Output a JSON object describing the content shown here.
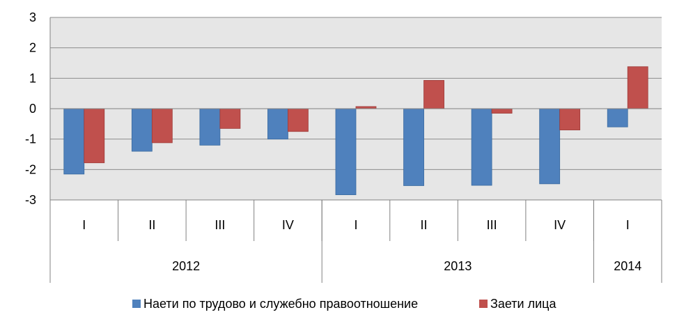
{
  "chart_data": {
    "type": "bar",
    "categories": [
      "I",
      "II",
      "III",
      "IV",
      "I",
      "II",
      "III",
      "IV",
      "I"
    ],
    "groups": [
      {
        "label": "2012",
        "count": 4
      },
      {
        "label": "2013",
        "count": 4
      },
      {
        "label": "2014",
        "count": 1
      }
    ],
    "series": [
      {
        "name": "Наети по трудово и служебно правоотношение",
        "color": "#4f81bd",
        "values": [
          -2.15,
          -1.4,
          -1.2,
          -1.0,
          -2.83,
          -2.53,
          -2.52,
          -2.47,
          -0.6
        ]
      },
      {
        "name": "Заети лица",
        "color": "#c0504d",
        "values": [
          -1.78,
          -1.12,
          -0.65,
          -0.75,
          0.07,
          0.93,
          -0.15,
          -0.7,
          1.38
        ]
      }
    ],
    "yticks": [
      "-3",
      "-2",
      "-1",
      "0",
      "1",
      "2",
      "3"
    ],
    "ylim": [
      -3,
      3
    ],
    "grid": true,
    "legend_position": "bottom"
  }
}
